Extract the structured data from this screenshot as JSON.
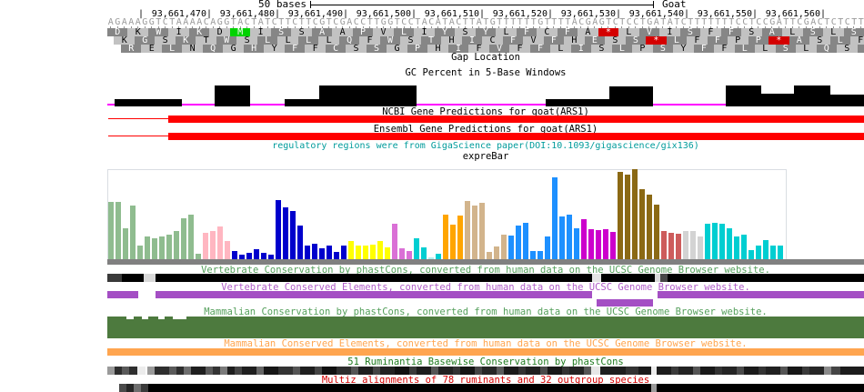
{
  "ruler": {
    "scale_label": "50 bases",
    "assembly_label": "Goat"
  },
  "coordinates": {
    "left_tick": "|",
    "labels": [
      "93,661,470",
      "93,661,480",
      "93,661,490",
      "93,661,500",
      "93,661,510",
      "93,661,520",
      "93,661,530",
      "93,661,540",
      "93,661,550",
      "93,661,560"
    ]
  },
  "sequence": {
    "dna": "AGAAAGGTCTAAAACAGGTACTATCTTCTTCGTCGACCTTGGTCCTACATACTTATGTTTTTTGTTTTACGAGTCTCCTGATATCTTTTTTTCCTCCGATTCGACTCTCTT",
    "color": "#9a9a9a"
  },
  "translation": {
    "box_light": "#c2c2c2",
    "box_dark": "#868686",
    "start_color": "#00d200",
    "stop_color": "#d40000",
    "frames": [
      {
        "residues": "DKWIKDMISSAAPVLIYSYLFCFA*LVISFFSALSLS",
        "start_codons": [
          6
        ],
        "stop_codons": [
          24
        ]
      },
      {
        "residues": "KGSKTWSLLLLQFWSTHICFVFHESS*LFFPP*ASLF",
        "start_codons": [],
        "stop_codons": [
          26,
          32
        ]
      },
      {
        "residues": "RELNQGHYFFCSSGPHIFVFFLISLPSYFFLLSLQSF",
        "start_codons": [],
        "stop_codons": []
      }
    ]
  },
  "tracks": {
    "gap_location": {
      "label": "Gap Location",
      "label_color": "#000000"
    },
    "gc_percent": {
      "label": "GC Percent in 5-Base Windows",
      "label_color": "#000000",
      "bar_color": "#000000",
      "baseline_color": "#ff00ff"
    },
    "ncbi_genes": {
      "label": "NCBI Gene Predictions for goat(ARS1)",
      "label_color": "#000000",
      "color": "#ff0000",
      "intron_line": [
        119,
        66
      ],
      "exon_bar": [
        185,
        765
      ]
    },
    "ensembl_genes": {
      "label": "Ensembl Gene Predictions for goat(ARS1)",
      "label_color": "#000000",
      "color": "#ff0000",
      "intron_line": [
        119,
        66
      ],
      "exon_bar": [
        185,
        765
      ]
    },
    "regulatory": {
      "label": "regulatory regions were from GigaScience paper(DOI:10.1093/gigascience/gix136)",
      "label_color": "#009b9b"
    },
    "exprebar": {
      "label": "expreBar",
      "label_color": "#000000",
      "frame_color": "#d9dde2",
      "baseline_color": "#808080"
    },
    "vertebrate_cons": {
      "label": "Vertebrate Conservation by phastCons, converted from human data on the UCSC Genome Browser website.",
      "label_color": "#55a05c",
      "segments": [
        [
          118,
          16,
          "#3a3a3a"
        ],
        [
          134,
          24,
          "#000000"
        ],
        [
          158,
          13,
          "#d8d8d8"
        ],
        [
          171,
          480,
          "#000000"
        ],
        [
          651,
          10,
          "#e4e4e4"
        ],
        [
          661,
          59,
          "#000000"
        ],
        [
          720,
          6,
          "#d8d8d8"
        ],
        [
          726,
          8,
          "#484848"
        ],
        [
          734,
          216,
          "#000000"
        ]
      ]
    },
    "vertebrate_elems": {
      "label": "Vertebrate Conserved Elements, converted from human data on the UCSC Genome Browser website.",
      "label_color": "#b05ec8",
      "color": "#a44fc4",
      "rows": [
        [
          [
            118,
            34
          ],
          [
            171,
            480
          ],
          [
            723,
            227
          ]
        ],
        [
          [
            656,
            62
          ]
        ]
      ]
    },
    "mammal_cons": {
      "label": "Mammalian Conservation by phastCons, converted from human data on the UCSC Genome Browser website.",
      "label_color": "#55a05c",
      "color": "#4d7a3e",
      "gaps": [
        [
          139,
          8
        ],
        [
          156,
          7
        ],
        [
          174,
          7
        ],
        [
          190,
          15
        ]
      ]
    },
    "mammal_elems": {
      "label": "Mammalian Conserved Elements, converted from human data on the UCSC Genome Browser website.",
      "label_color": "#ffa54f",
      "color": "#ffa54f"
    },
    "ruminantia_cons": {
      "label": "51 Ruminantia Basewise Conservation by phastCons",
      "label_color": "#1f7a1f",
      "segments": [
        [
          118,
          8,
          "#9a9a9a"
        ],
        [
          126,
          8,
          "#2e2e2e"
        ],
        [
          134,
          8,
          "#5a5a5a"
        ],
        [
          142,
          9,
          "#2e2e2e"
        ],
        [
          151,
          9,
          "#ececec"
        ],
        [
          162,
          8,
          "#9a9a9a"
        ],
        [
          170,
          16,
          "#2e2e2e"
        ],
        [
          186,
          8,
          "#5a5a5a"
        ],
        [
          194,
          8,
          "#2e2e2e"
        ],
        [
          202,
          8,
          "#6e6e6e"
        ],
        [
          210,
          16,
          "#1e1e1e"
        ],
        [
          226,
          8,
          "#5a5a5a"
        ],
        [
          234,
          8,
          "#333333"
        ],
        [
          242,
          8,
          "#7a7a7a"
        ],
        [
          250,
          8,
          "#1e1e1e"
        ],
        [
          258,
          8,
          "#444444"
        ],
        [
          266,
          16,
          "#1e1e1e"
        ],
        [
          282,
          8,
          "#666666"
        ],
        [
          290,
          16,
          "#161616"
        ],
        [
          306,
          16,
          "#333333"
        ],
        [
          322,
          8,
          "#555555"
        ],
        [
          330,
          16,
          "#1e1e1e"
        ],
        [
          346,
          8,
          "#444444"
        ],
        [
          354,
          16,
          "#101010"
        ],
        [
          370,
          16,
          "#2e2e2e"
        ],
        [
          386,
          8,
          "#555555"
        ],
        [
          394,
          16,
          "#1e1e1e"
        ],
        [
          410,
          8,
          "#444444"
        ],
        [
          418,
          16,
          "#222222"
        ],
        [
          434,
          16,
          "#111111"
        ],
        [
          450,
          8,
          "#3a3a3a"
        ],
        [
          458,
          16,
          "#1c1c1c"
        ],
        [
          474,
          8,
          "#555555"
        ],
        [
          482,
          16,
          "#222222"
        ],
        [
          498,
          8,
          "#333333"
        ],
        [
          506,
          16,
          "#151515"
        ],
        [
          522,
          8,
          "#444444"
        ],
        [
          530,
          16,
          "#262626"
        ],
        [
          546,
          8,
          "#5a5a5a"
        ],
        [
          554,
          16,
          "#1a1a1a"
        ],
        [
          570,
          8,
          "#333333"
        ],
        [
          578,
          16,
          "#202020"
        ],
        [
          594,
          8,
          "#4a4a4a"
        ],
        [
          602,
          16,
          "#181818"
        ],
        [
          618,
          8,
          "#333333"
        ],
        [
          626,
          16,
          "#242424"
        ],
        [
          642,
          8,
          "#555555"
        ],
        [
          650,
          10,
          "#e6e6e6"
        ],
        [
          660,
          28,
          "#1e1e1e"
        ],
        [
          688,
          14,
          "#333333"
        ],
        [
          702,
          14,
          "#1a1a1a"
        ],
        [
          716,
          6,
          "#ececec"
        ],
        [
          722,
          16,
          "#1c1c1c"
        ],
        [
          738,
          8,
          "#3a3a3a"
        ],
        [
          746,
          16,
          "#222222"
        ],
        [
          762,
          8,
          "#555555"
        ],
        [
          770,
          16,
          "#181818"
        ],
        [
          786,
          8,
          "#333333"
        ],
        [
          794,
          16,
          "#242424"
        ],
        [
          810,
          8,
          "#4a4a4a"
        ],
        [
          818,
          16,
          "#1a1a1a"
        ],
        [
          834,
          8,
          "#333333"
        ],
        [
          842,
          16,
          "#202020"
        ],
        [
          858,
          8,
          "#555555"
        ],
        [
          866,
          16,
          "#161616"
        ],
        [
          882,
          8,
          "#3a3a3a"
        ],
        [
          890,
          16,
          "#262626"
        ],
        [
          906,
          8,
          "#8a8a8a"
        ],
        [
          914,
          10,
          "#444444"
        ],
        [
          924,
          26,
          "#1c1c1c"
        ]
      ]
    },
    "multiz": {
      "label": "Multiz alignments of 78 ruminants and 32 outgroup species",
      "label_color": "#d40000",
      "segments": [
        [
          131,
          8,
          "#4a4a4a"
        ],
        [
          139,
          8,
          "#262626"
        ],
        [
          147,
          8,
          "#6e6e6e"
        ],
        [
          155,
          8,
          "#3a3a3a"
        ],
        [
          163,
          553,
          "#000000"
        ],
        [
          716,
          6,
          "#9a9a9a"
        ],
        [
          722,
          228,
          "#000000"
        ]
      ]
    }
  },
  "chart_data": [
    {
      "type": "area",
      "title": "GC Percent in 5-Base Windows",
      "note": "black filled bars above magenta baseline; heights in px, no axis labels shown",
      "bar_color": "#000000",
      "baseline_color": "#ff00ff",
      "bars": [
        [
          126,
          74,
          8
        ],
        [
          236,
          39,
          23
        ],
        [
          313,
          38,
          8
        ],
        [
          351,
          107,
          23
        ],
        [
          600,
          70,
          8
        ],
        [
          670,
          48,
          22
        ],
        [
          798,
          39,
          23
        ],
        [
          837,
          36,
          14
        ],
        [
          873,
          40,
          23
        ],
        [
          913,
          37,
          13
        ]
      ]
    },
    {
      "type": "bar",
      "title": "expreBar",
      "note": "expression bar chart, one bar per sample grouped by tissue color; heights in px of 99px-tall plot, no axis shown",
      "groups": [
        {
          "color": "#8FBC8F",
          "values": [
            63,
            63,
            34,
            59,
            15,
            25,
            23,
            25,
            27,
            31,
            45,
            49,
            6
          ]
        },
        {
          "color": "#FFB6C1",
          "values": [
            29,
            31,
            36,
            20
          ]
        },
        {
          "color": "#0000CC",
          "values": [
            9,
            5,
            7,
            11,
            7,
            5,
            65,
            57,
            53,
            37,
            15,
            17,
            12,
            15,
            8,
            15
          ]
        },
        {
          "color": "#FFFF00",
          "values": [
            20,
            15,
            15,
            16,
            20,
            13
          ]
        },
        {
          "color": "#DA70D6",
          "values": [
            39,
            12,
            9
          ]
        },
        {
          "color": "#00CED1",
          "values": [
            23,
            13
          ]
        },
        {
          "color": "#AFEEEE",
          "values": [
            2
          ]
        },
        {
          "color": "#00CED1",
          "values": [
            6
          ]
        },
        {
          "color": "#FFA500",
          "values": [
            49,
            38,
            48
          ]
        },
        {
          "color": "#D2B48C",
          "values": [
            64,
            59,
            62,
            8,
            14,
            27
          ]
        },
        {
          "color": "#1E90FF",
          "values": [
            26,
            37,
            40,
            9,
            9,
            25,
            90,
            47,
            49,
            34
          ]
        },
        {
          "color": "#CC00CC",
          "values": [
            44,
            33,
            32,
            33,
            30
          ]
        },
        {
          "color": "#8B6914",
          "values": [
            96,
            93,
            99,
            77,
            71,
            60
          ]
        },
        {
          "color": "#CD5C5C",
          "values": [
            31,
            29,
            28
          ]
        },
        {
          "color": "#D3D3D3",
          "values": [
            31,
            31,
            25
          ]
        },
        {
          "color": "#00CED1",
          "values": [
            39,
            40,
            39,
            34,
            25,
            27,
            10,
            15,
            21,
            15,
            15
          ]
        }
      ]
    }
  ]
}
